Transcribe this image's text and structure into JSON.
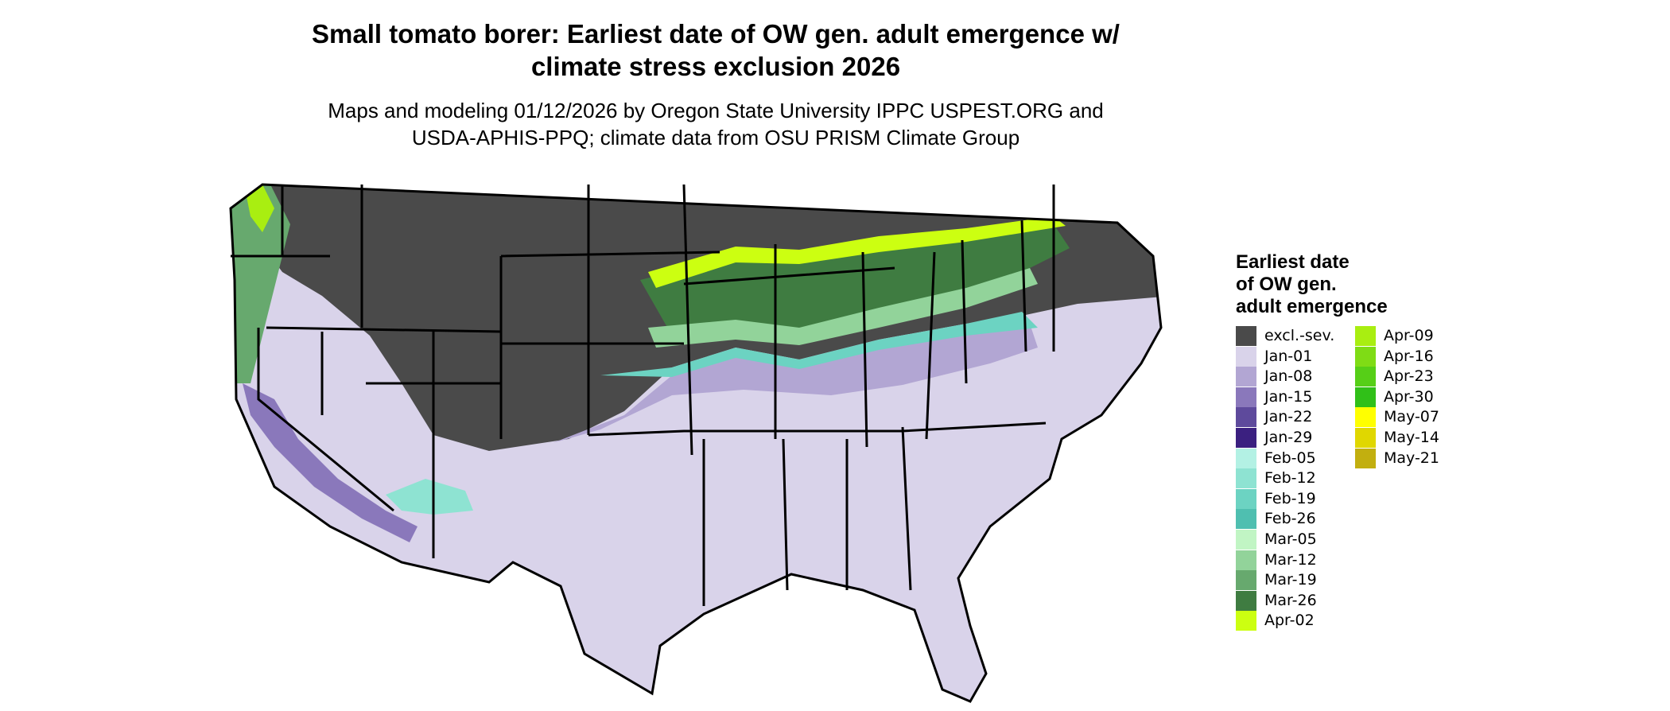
{
  "title_line1": "Small tomato borer: Earliest date of OW gen. adult emergence w/",
  "title_line2": "climate stress exclusion 2026",
  "subtitle_line1": "Maps and modeling 01/12/2026 by Oregon State University IPPC USPEST.ORG and",
  "subtitle_line2": "USDA-APHIS-PPQ; climate data from OSU PRISM Climate Group",
  "legend": {
    "title_line1": "Earliest date",
    "title_line2": "of OW gen.",
    "title_line3": "adult emergence",
    "items": [
      {
        "label": "excl.-sev.",
        "color": "#4a4a4a"
      },
      {
        "label": "Jan-01",
        "color": "#d9d3ea"
      },
      {
        "label": "Jan-08",
        "color": "#b2a6d3"
      },
      {
        "label": "Jan-15",
        "color": "#8a78bb"
      },
      {
        "label": "Jan-22",
        "color": "#5e4a9c"
      },
      {
        "label": "Jan-29",
        "color": "#3b2080"
      },
      {
        "label": "Feb-05",
        "color": "#b3f1e4"
      },
      {
        "label": "Feb-12",
        "color": "#8ee3d2"
      },
      {
        "label": "Feb-19",
        "color": "#6cd3c2"
      },
      {
        "label": "Feb-26",
        "color": "#4fbfb0"
      },
      {
        "label": "Mar-05",
        "color": "#c1f5c4"
      },
      {
        "label": "Mar-12",
        "color": "#92d39a"
      },
      {
        "label": "Mar-19",
        "color": "#67a96e"
      },
      {
        "label": "Mar-26",
        "color": "#3f7c41"
      },
      {
        "label": "Apr-02",
        "color": "#ccff11"
      },
      {
        "label": "Apr-09",
        "color": "#a9ee11"
      },
      {
        "label": "Apr-16",
        "color": "#7fdc15"
      },
      {
        "label": "Apr-23",
        "color": "#56cf17"
      },
      {
        "label": "Apr-30",
        "color": "#30c018"
      },
      {
        "label": "May-07",
        "color": "#ffff00"
      },
      {
        "label": "May-14",
        "color": "#e0d700"
      },
      {
        "label": "May-21",
        "color": "#c2af0f"
      }
    ]
  }
}
